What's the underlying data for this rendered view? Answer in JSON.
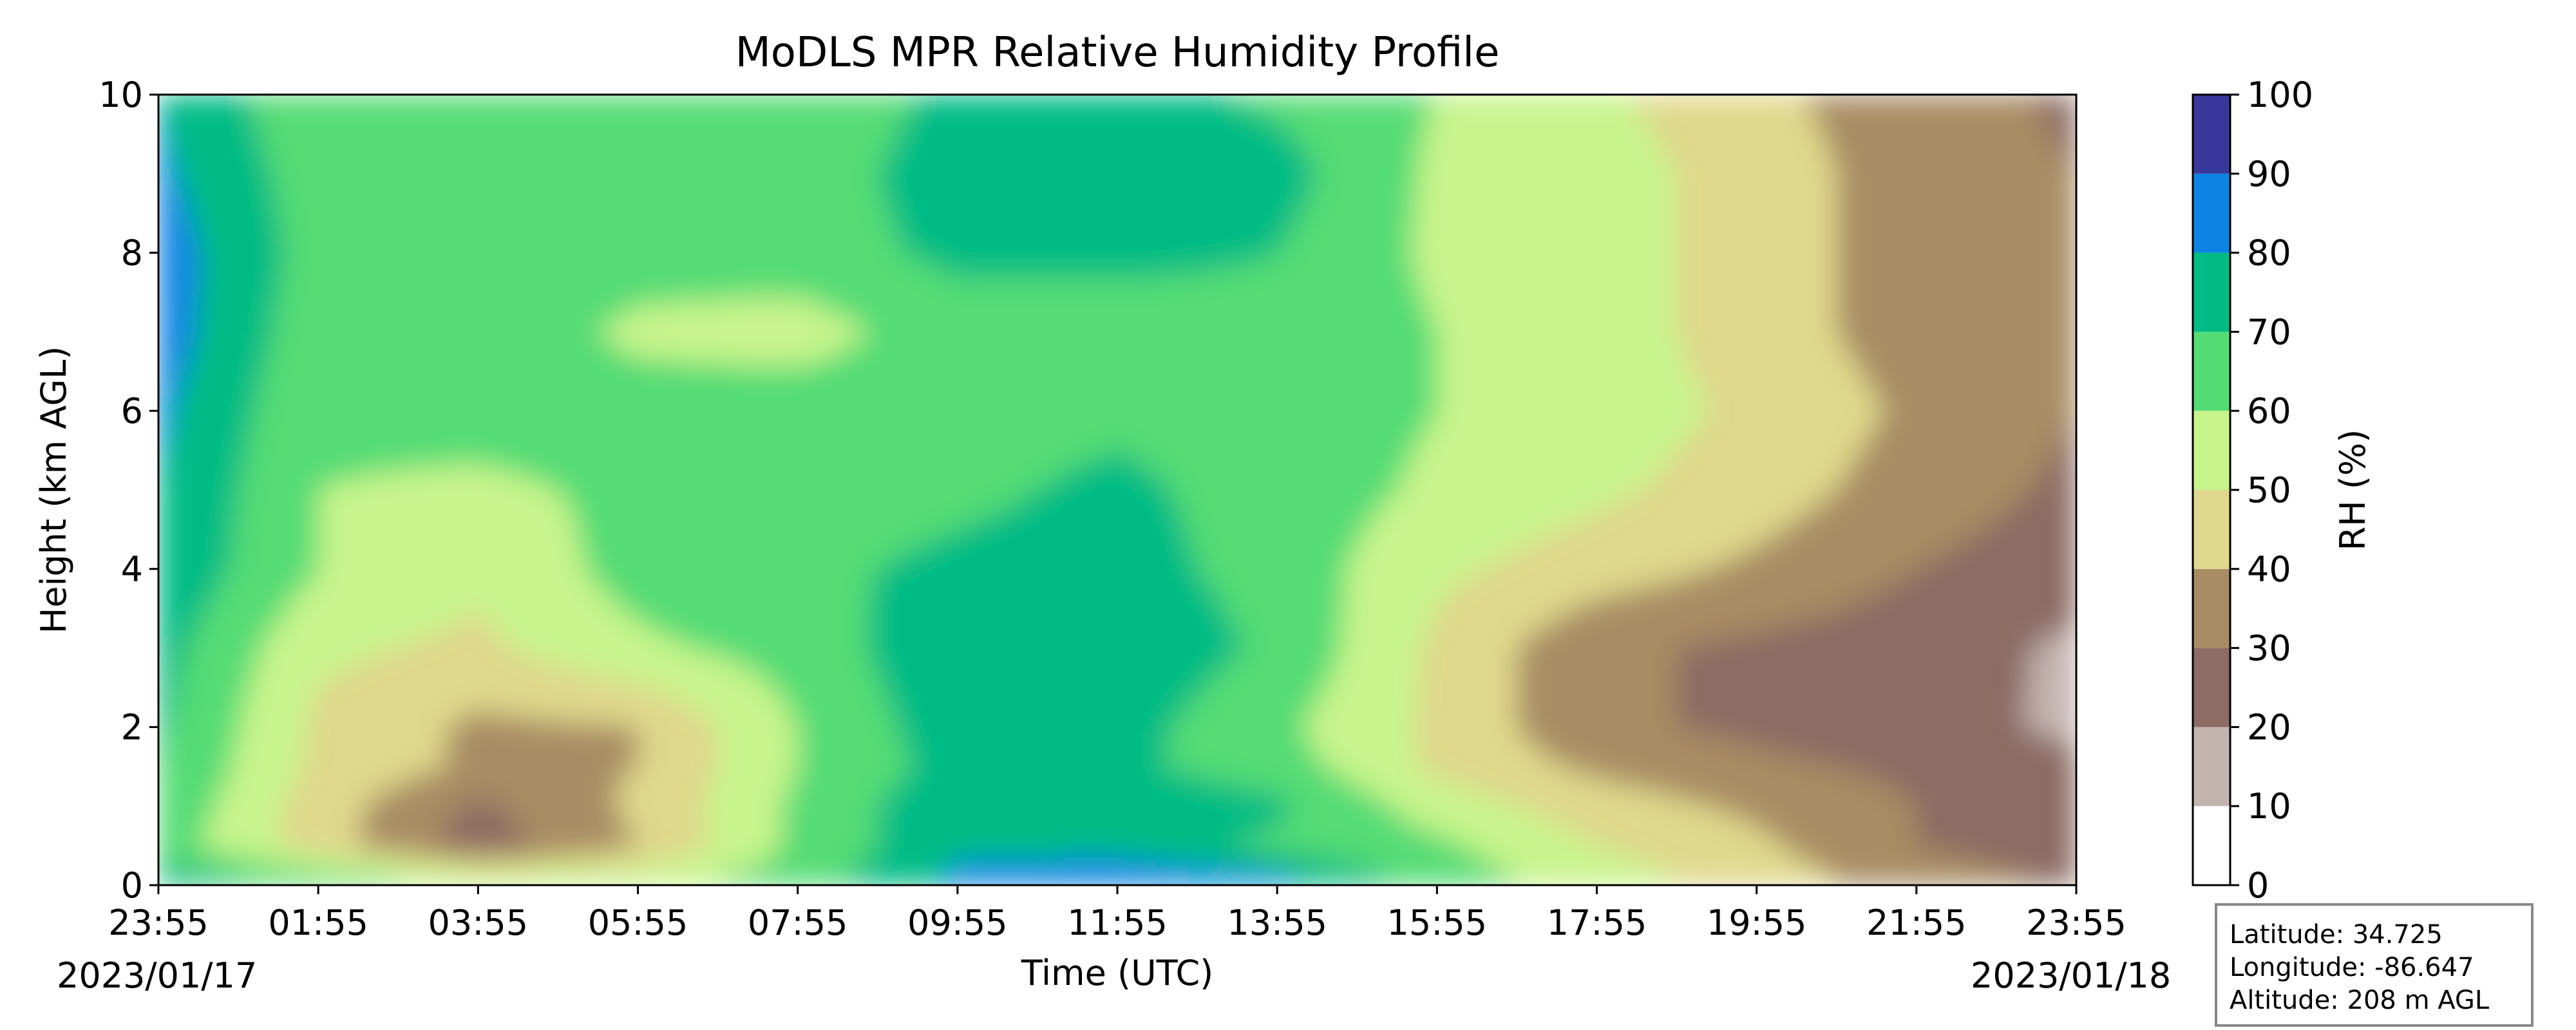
{
  "chart_data": {
    "type": "heatmap",
    "title": "MoDLS MPR Relative Humidity Profile",
    "xlabel": "Time (UTC)",
    "ylabel": "Height (km AGL)",
    "x_ticks": [
      "23:55",
      "01:55",
      "03:55",
      "05:55",
      "07:55",
      "09:55",
      "11:55",
      "13:55",
      "15:55",
      "17:55",
      "19:55",
      "21:55",
      "23:55"
    ],
    "start_date": "2023/01/17",
    "end_date": "2023/01/18",
    "ylim": [
      0,
      10
    ],
    "y_ticks": [
      "0",
      "2",
      "4",
      "6",
      "8",
      "10"
    ],
    "colorbar": {
      "label": "RH (%)",
      "ticks": [
        "0",
        "10",
        "20",
        "30",
        "40",
        "50",
        "60",
        "70",
        "80",
        "90",
        "100"
      ],
      "levels": [
        {
          "range": [
            0,
            10
          ],
          "color": "#ffffff"
        },
        {
          "range": [
            10,
            20
          ],
          "color": "#c4b4b0"
        },
        {
          "range": [
            20,
            30
          ],
          "color": "#8c6c64"
        },
        {
          "range": [
            30,
            40
          ],
          "color": "#a88c64"
        },
        {
          "range": [
            40,
            50
          ],
          "color": "#e0d88c"
        },
        {
          "range": [
            50,
            60
          ],
          "color": "#c8f48c"
        },
        {
          "range": [
            60,
            70
          ],
          "color": "#54dc74"
        },
        {
          "range": [
            70,
            80
          ],
          "color": "#00bc84"
        },
        {
          "range": [
            80,
            90
          ],
          "color": "#0c84e4"
        },
        {
          "range": [
            90,
            100
          ],
          "color": "#38389c"
        }
      ]
    },
    "rh_field": {
      "time_hours_after_start": [
        0,
        2,
        4,
        6,
        8,
        10,
        12,
        14,
        16,
        18,
        20,
        22,
        24
      ],
      "height_km": [
        0.1,
        0.5,
        1.0,
        1.5,
        2.0,
        3.0,
        4.0,
        5.0,
        6.0,
        7.0,
        8.0,
        9.0,
        10.0
      ],
      "rh_percent": [
        [
          75,
          65,
          55,
          55,
          65,
          82,
          88,
          82,
          65,
          55,
          45,
          35,
          28
        ],
        [
          65,
          45,
          25,
          40,
          62,
          78,
          75,
          68,
          62,
          50,
          42,
          30,
          25
        ],
        [
          68,
          45,
          28,
          42,
          62,
          78,
          78,
          72,
          55,
          45,
          38,
          30,
          22
        ],
        [
          70,
          48,
          38,
          40,
          60,
          74,
          72,
          65,
          48,
          38,
          32,
          28,
          22
        ],
        [
          72,
          48,
          38,
          40,
          60,
          76,
          74,
          62,
          48,
          32,
          28,
          24,
          18
        ],
        [
          74,
          52,
          48,
          58,
          64,
          78,
          78,
          68,
          48,
          32,
          28,
          25,
          18
        ],
        [
          78,
          60,
          52,
          64,
          68,
          72,
          74,
          66,
          52,
          45,
          38,
          30,
          25
        ],
        [
          80,
          60,
          58,
          62,
          65,
          68,
          72,
          66,
          58,
          52,
          45,
          35,
          28
        ],
        [
          82,
          62,
          64,
          64,
          66,
          66,
          68,
          66,
          60,
          55,
          48,
          38,
          30
        ],
        [
          85,
          64,
          66,
          58,
          55,
          66,
          66,
          68,
          60,
          55,
          45,
          35,
          30
        ],
        [
          85,
          66,
          68,
          64,
          66,
          72,
          72,
          70,
          58,
          55,
          45,
          35,
          30
        ],
        [
          82,
          65,
          66,
          65,
          66,
          74,
          74,
          74,
          58,
          55,
          45,
          35,
          30
        ],
        [
          80,
          62,
          66,
          66,
          64,
          72,
          74,
          68,
          60,
          52,
          42,
          35,
          28
        ]
      ]
    }
  },
  "station_info": {
    "latitude": "Latitude: 34.725",
    "longitude": "Longitude: -86.647",
    "altitude": "Altitude: 208 m AGL"
  }
}
